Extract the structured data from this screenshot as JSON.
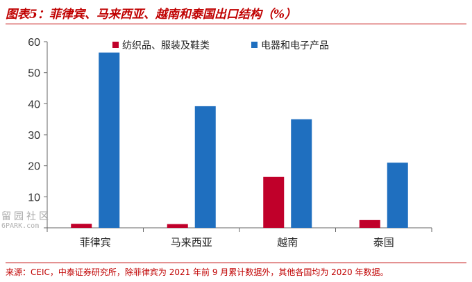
{
  "title": "图表5：菲律宾、马来西亚、越南和泰国出口结构（%）",
  "source": "来源：CEIC，中泰证券研究所，除菲律宾为 2021 年前 9 月累计数据外，其他各国均为 2020 年数据。",
  "watermark": {
    "cn": "留园社区",
    "en": "6PARK.com"
  },
  "colors": {
    "series1": "#c0002a",
    "series2": "#1f6fbf",
    "accent": "#c00000",
    "axis": "#666666"
  },
  "chart_data": {
    "type": "bar",
    "title": "",
    "xlabel": "",
    "ylabel": "",
    "categories": [
      "菲律宾",
      "马来西亚",
      "越南",
      "泰国"
    ],
    "ylim": [
      0,
      60
    ],
    "yticks": [
      0,
      10,
      20,
      30,
      40,
      50,
      60
    ],
    "ytick_labels": [
      "",
      "10",
      "20",
      "30",
      "40",
      "50",
      "60"
    ],
    "grid": false,
    "legend_position": "top",
    "series": [
      {
        "name": "纺织品、服装及鞋类",
        "values": [
          1.3,
          1.2,
          16.4,
          2.5
        ],
        "color": "#c0002a"
      },
      {
        "name": "电器和电子产品",
        "values": [
          56.5,
          39.2,
          35.0,
          21.0
        ],
        "color": "#1f6fbf"
      }
    ]
  }
}
